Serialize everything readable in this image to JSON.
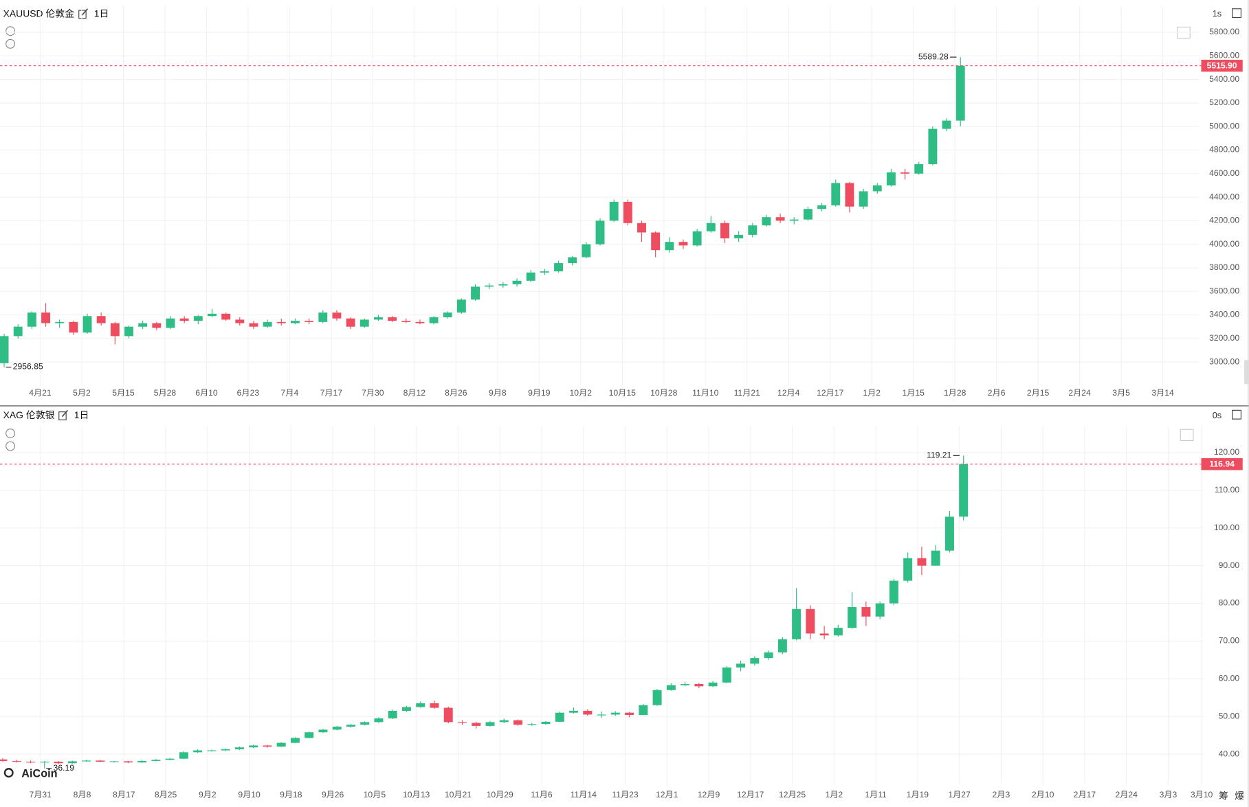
{
  "watermark": "AiCoin",
  "side_buttons": [
    "筹",
    "爆"
  ],
  "chart_data": [
    {
      "type": "candlestick",
      "title": "XAUUSD 伦敦金",
      "interval": "1日",
      "timer": "1s",
      "up_color": "#2ebd85",
      "down_color": "#ee4d5f",
      "ylim": [
        2800,
        6020
      ],
      "xlim": [
        -0.3,
        86.2
      ],
      "grid": true,
      "yticks": [
        {
          "value": 3000,
          "label": "3000.00"
        },
        {
          "value": 3200,
          "label": "3200.00"
        },
        {
          "value": 3400,
          "label": "3400.00"
        },
        {
          "value": 3600,
          "label": "3600.00"
        },
        {
          "value": 3800,
          "label": "3800.00"
        },
        {
          "value": 4000,
          "label": "4000.00"
        },
        {
          "value": 4200,
          "label": "4200.00"
        },
        {
          "value": 4400,
          "label": "4400.00"
        },
        {
          "value": 4600,
          "label": "4600.00"
        },
        {
          "value": 4800,
          "label": "4800.00"
        },
        {
          "value": 5000,
          "label": "5000.00"
        },
        {
          "value": 5200,
          "label": "5200.00"
        },
        {
          "value": 5400,
          "label": "5400.00"
        },
        {
          "value": 5600,
          "label": "5600.00"
        },
        {
          "value": 5800,
          "label": "5800.00"
        }
      ],
      "xticks": [
        {
          "value": 2.6,
          "label": "4月21"
        },
        {
          "value": 5.6,
          "label": "5月2"
        },
        {
          "value": 8.6,
          "label": "5月15"
        },
        {
          "value": 11.6,
          "label": "5月28"
        },
        {
          "value": 14.6,
          "label": "6月10"
        },
        {
          "value": 17.6,
          "label": "6月23"
        },
        {
          "value": 20.6,
          "label": "7月4"
        },
        {
          "value": 23.6,
          "label": "7月17"
        },
        {
          "value": 26.6,
          "label": "7月30"
        },
        {
          "value": 29.6,
          "label": "8月12"
        },
        {
          "value": 32.6,
          "label": "8月26"
        },
        {
          "value": 35.6,
          "label": "9月8"
        },
        {
          "value": 38.6,
          "label": "9月19"
        },
        {
          "value": 41.6,
          "label": "10月2"
        },
        {
          "value": 44.6,
          "label": "10月15"
        },
        {
          "value": 47.6,
          "label": "10月28"
        },
        {
          "value": 50.6,
          "label": "11月10"
        },
        {
          "value": 53.6,
          "label": "11月21"
        },
        {
          "value": 56.6,
          "label": "12月4"
        },
        {
          "value": 59.6,
          "label": "12月17"
        },
        {
          "value": 62.6,
          "label": "1月2"
        },
        {
          "value": 65.6,
          "label": "1月15"
        },
        {
          "value": 68.6,
          "label": "1月28"
        },
        {
          "value": 71.6,
          "label": "2月6"
        },
        {
          "value": 74.6,
          "label": "2月15"
        },
        {
          "value": 77.6,
          "label": "2月24"
        },
        {
          "value": 80.6,
          "label": "3月5"
        },
        {
          "value": 83.6,
          "label": "3月14"
        }
      ],
      "last_price": {
        "value": 5515.9,
        "label": "5515.90"
      },
      "high_marker": 5589.28,
      "low_marker": 2956.85,
      "candles": [
        [
          2990,
          3240,
          2956.85,
          3220
        ],
        [
          3220,
          3320,
          3200,
          3300
        ],
        [
          3300,
          3430,
          3280,
          3420
        ],
        [
          3420,
          3500,
          3300,
          3330
        ],
        [
          3330,
          3360,
          3290,
          3340
        ],
        [
          3340,
          3350,
          3230,
          3250
        ],
        [
          3250,
          3410,
          3240,
          3390
        ],
        [
          3390,
          3420,
          3310,
          3330
        ],
        [
          3330,
          3340,
          3150,
          3220
        ],
        [
          3220,
          3310,
          3200,
          3300
        ],
        [
          3300,
          3350,
          3280,
          3330
        ],
        [
          3330,
          3340,
          3270,
          3290
        ],
        [
          3290,
          3390,
          3280,
          3370
        ],
        [
          3370,
          3390,
          3330,
          3350
        ],
        [
          3350,
          3400,
          3320,
          3390
        ],
        [
          3390,
          3450,
          3380,
          3410
        ],
        [
          3410,
          3420,
          3350,
          3360
        ],
        [
          3360,
          3380,
          3310,
          3330
        ],
        [
          3330,
          3350,
          3280,
          3300
        ],
        [
          3300,
          3360,
          3290,
          3340
        ],
        [
          3340,
          3370,
          3310,
          3330
        ],
        [
          3330,
          3370,
          3320,
          3350
        ],
        [
          3350,
          3370,
          3320,
          3340
        ],
        [
          3340,
          3440,
          3330,
          3420
        ],
        [
          3420,
          3440,
          3350,
          3370
        ],
        [
          3370,
          3380,
          3280,
          3300
        ],
        [
          3300,
          3370,
          3290,
          3360
        ],
        [
          3360,
          3400,
          3350,
          3380
        ],
        [
          3380,
          3390,
          3340,
          3350
        ],
        [
          3350,
          3370,
          3330,
          3340
        ],
        [
          3340,
          3360,
          3320,
          3330
        ],
        [
          3330,
          3390,
          3320,
          3380
        ],
        [
          3380,
          3430,
          3370,
          3420
        ],
        [
          3420,
          3540,
          3410,
          3530
        ],
        [
          3530,
          3660,
          3520,
          3640
        ],
        [
          3640,
          3670,
          3620,
          3650
        ],
        [
          3650,
          3680,
          3630,
          3660
        ],
        [
          3660,
          3710,
          3640,
          3690
        ],
        [
          3690,
          3780,
          3680,
          3760
        ],
        [
          3760,
          3790,
          3740,
          3770
        ],
        [
          3770,
          3860,
          3760,
          3840
        ],
        [
          3840,
          3900,
          3820,
          3890
        ],
        [
          3890,
          4020,
          3880,
          4000
        ],
        [
          4000,
          4220,
          3990,
          4200
        ],
        [
          4200,
          4380,
          4190,
          4360
        ],
        [
          4360,
          4380,
          4160,
          4180
        ],
        [
          4180,
          4200,
          4020,
          4100
        ],
        [
          4100,
          4110,
          3890,
          3950
        ],
        [
          3950,
          4060,
          3930,
          4020
        ],
        [
          4020,
          4040,
          3960,
          3990
        ],
        [
          3990,
          4130,
          3980,
          4110
        ],
        [
          4110,
          4240,
          4100,
          4180
        ],
        [
          4180,
          4200,
          4010,
          4050
        ],
        [
          4050,
          4110,
          4020,
          4080
        ],
        [
          4080,
          4180,
          4060,
          4160
        ],
        [
          4160,
          4250,
          4150,
          4230
        ],
        [
          4230,
          4260,
          4180,
          4200
        ],
        [
          4200,
          4230,
          4170,
          4210
        ],
        [
          4210,
          4320,
          4200,
          4300
        ],
        [
          4300,
          4350,
          4280,
          4330
        ],
        [
          4330,
          4550,
          4320,
          4520
        ],
        [
          4520,
          4530,
          4270,
          4320
        ],
        [
          4320,
          4470,
          4300,
          4450
        ],
        [
          4450,
          4520,
          4430,
          4500
        ],
        [
          4500,
          4640,
          4490,
          4610
        ],
        [
          4610,
          4640,
          4550,
          4600
        ],
        [
          4600,
          4700,
          4590,
          4680
        ],
        [
          4680,
          5000,
          4670,
          4980
        ],
        [
          4980,
          5070,
          4960,
          5050
        ],
        [
          5050,
          5589.28,
          5000,
          5515.9
        ]
      ]
    },
    {
      "type": "candlestick",
      "title": "XAG 伦敦银",
      "interval": "1日",
      "timer": "0s",
      "up_color": "#2ebd85",
      "down_color": "#ee4d5f",
      "ylim": [
        31.9,
        127
      ],
      "xlim": [
        -0.2,
        86.3
      ],
      "grid": true,
      "yticks": [
        {
          "value": 40,
          "label": "40.00"
        },
        {
          "value": 50,
          "label": "50.00"
        },
        {
          "value": 60,
          "label": "60.00"
        },
        {
          "value": 70,
          "label": "70.00"
        },
        {
          "value": 80,
          "label": "80.00"
        },
        {
          "value": 90,
          "label": "90.00"
        },
        {
          "value": 100,
          "label": "100.00"
        },
        {
          "value": 110,
          "label": "110.00"
        },
        {
          "value": 120,
          "label": "120.00"
        }
      ],
      "xticks": [
        {
          "value": 2.7,
          "label": "7月31"
        },
        {
          "value": 5.7,
          "label": "8月8"
        },
        {
          "value": 8.7,
          "label": "8月17"
        },
        {
          "value": 11.7,
          "label": "8月25"
        },
        {
          "value": 14.7,
          "label": "9月2"
        },
        {
          "value": 17.7,
          "label": "9月10"
        },
        {
          "value": 20.7,
          "label": "9月18"
        },
        {
          "value": 23.7,
          "label": "9月26"
        },
        {
          "value": 26.7,
          "label": "10月5"
        },
        {
          "value": 29.7,
          "label": "10月13"
        },
        {
          "value": 32.7,
          "label": "10月21"
        },
        {
          "value": 35.7,
          "label": "10月29"
        },
        {
          "value": 38.7,
          "label": "11月6"
        },
        {
          "value": 41.7,
          "label": "11月14"
        },
        {
          "value": 44.7,
          "label": "11月23"
        },
        {
          "value": 47.7,
          "label": "12月1"
        },
        {
          "value": 50.7,
          "label": "12月9"
        },
        {
          "value": 53.7,
          "label": "12月17"
        },
        {
          "value": 56.7,
          "label": "12月25"
        },
        {
          "value": 59.7,
          "label": "1月2"
        },
        {
          "value": 62.7,
          "label": "1月11"
        },
        {
          "value": 65.7,
          "label": "1月19"
        },
        {
          "value": 68.7,
          "label": "1月27"
        },
        {
          "value": 71.7,
          "label": "2月3"
        },
        {
          "value": 74.7,
          "label": "2月10"
        },
        {
          "value": 77.7,
          "label": "2月17"
        },
        {
          "value": 80.7,
          "label": "2月24"
        },
        {
          "value": 83.7,
          "label": "3月3"
        },
        {
          "value": 86.1,
          "label": "3月10"
        }
      ],
      "last_price": 116.94,
      "high_marker": 119.21,
      "low_marker": 36.19,
      "candles": [
        [
          38.6,
          38.9,
          38.0,
          38.2
        ],
        [
          38.2,
          38.5,
          37.8,
          38.0
        ],
        [
          38.0,
          38.3,
          37.6,
          37.8
        ],
        [
          37.8,
          38.2,
          36.19,
          38.0
        ],
        [
          38.0,
          38.2,
          37.3,
          37.6
        ],
        [
          37.6,
          38.3,
          37.5,
          38.1
        ],
        [
          38.1,
          38.5,
          38.0,
          38.3
        ],
        [
          38.3,
          38.5,
          37.9,
          38.0
        ],
        [
          38.0,
          38.2,
          37.8,
          38.1
        ],
        [
          38.1,
          38.2,
          37.6,
          37.8
        ],
        [
          37.8,
          38.4,
          37.7,
          38.2
        ],
        [
          38.2,
          38.7,
          38.1,
          38.5
        ],
        [
          38.5,
          39.0,
          38.4,
          38.8
        ],
        [
          38.8,
          40.8,
          38.7,
          40.5
        ],
        [
          40.5,
          41.3,
          40.3,
          41.0
        ],
        [
          41.0,
          41.2,
          40.7,
          41.0
        ],
        [
          41.0,
          41.5,
          40.8,
          41.3
        ],
        [
          41.3,
          42.0,
          41.1,
          41.8
        ],
        [
          41.8,
          42.5,
          41.6,
          42.3
        ],
        [
          42.3,
          42.5,
          41.7,
          42.0
        ],
        [
          42.0,
          43.2,
          41.9,
          43.0
        ],
        [
          43.0,
          44.5,
          42.9,
          44.3
        ],
        [
          44.3,
          46.0,
          44.2,
          45.8
        ],
        [
          45.8,
          46.7,
          45.6,
          46.5
        ],
        [
          46.5,
          47.5,
          46.3,
          47.3
        ],
        [
          47.3,
          48.0,
          47.0,
          47.8
        ],
        [
          47.8,
          48.7,
          47.6,
          48.5
        ],
        [
          48.5,
          49.8,
          48.3,
          49.5
        ],
        [
          49.5,
          51.8,
          49.3,
          51.5
        ],
        [
          51.5,
          52.8,
          51.2,
          52.5
        ],
        [
          52.5,
          54.0,
          52.3,
          53.5
        ],
        [
          53.5,
          54.2,
          52.0,
          52.3
        ],
        [
          52.3,
          52.6,
          48.2,
          48.5
        ],
        [
          48.5,
          49.0,
          47.8,
          48.3
        ],
        [
          48.3,
          48.6,
          46.8,
          47.5
        ],
        [
          47.5,
          48.8,
          47.3,
          48.5
        ],
        [
          48.5,
          49.4,
          48.2,
          49.0
        ],
        [
          49.0,
          49.2,
          47.5,
          47.8
        ],
        [
          47.8,
          48.3,
          47.5,
          48.0
        ],
        [
          48.0,
          48.8,
          47.8,
          48.6
        ],
        [
          48.6,
          51.3,
          48.5,
          51.0
        ],
        [
          51.0,
          52.4,
          50.8,
          51.5
        ],
        [
          51.5,
          51.9,
          50.2,
          50.5
        ],
        [
          50.5,
          51.3,
          49.6,
          50.5
        ],
        [
          50.5,
          51.4,
          50.2,
          51.0
        ],
        [
          51.0,
          51.2,
          49.8,
          50.4
        ],
        [
          50.4,
          53.3,
          50.3,
          53.0
        ],
        [
          53.0,
          57.3,
          52.8,
          57.0
        ],
        [
          57.0,
          58.8,
          56.8,
          58.3
        ],
        [
          58.3,
          59.2,
          58.0,
          58.6
        ],
        [
          58.6,
          58.9,
          57.5,
          58.0
        ],
        [
          58.0,
          59.4,
          57.8,
          59.0
        ],
        [
          59.0,
          63.3,
          58.8,
          63.0
        ],
        [
          63.0,
          64.8,
          62.0,
          64.0
        ],
        [
          64.0,
          66.0,
          63.5,
          65.5
        ],
        [
          65.5,
          67.5,
          65.0,
          67.0
        ],
        [
          67.0,
          71.0,
          66.5,
          70.5
        ],
        [
          70.5,
          84.0,
          70.2,
          78.5
        ],
        [
          78.5,
          79.5,
          70.5,
          72.0
        ],
        [
          72.0,
          74.0,
          70.5,
          71.5
        ],
        [
          71.5,
          74.3,
          71.2,
          73.5
        ],
        [
          73.5,
          83.0,
          73.3,
          79.0
        ],
        [
          79.0,
          80.5,
          74.0,
          76.5
        ],
        [
          76.5,
          80.5,
          75.8,
          80.0
        ],
        [
          80.0,
          86.5,
          79.5,
          86.0
        ],
        [
          86.0,
          93.5,
          85.5,
          92.0
        ],
        [
          92.0,
          95.0,
          87.5,
          90.0
        ],
        [
          90.0,
          95.5,
          90.0,
          94.0
        ],
        [
          94.0,
          104.5,
          93.5,
          103.0
        ],
        [
          103.0,
          119.21,
          102.0,
          116.94
        ]
      ]
    }
  ]
}
